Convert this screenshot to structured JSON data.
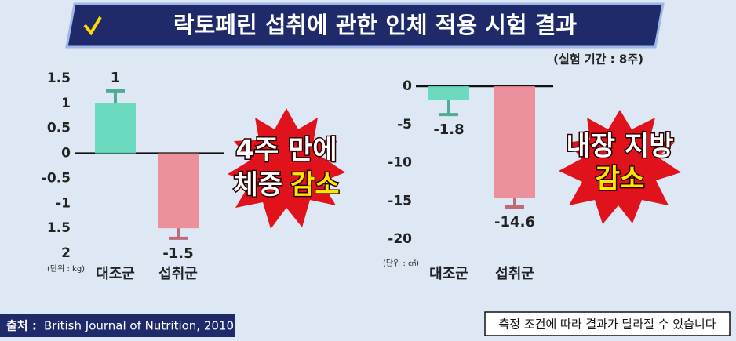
{
  "header": {
    "title": "락토페린 섭취에 관한 인체 적용 시험 결과",
    "period": "(실험 기간 : 8주)"
  },
  "chart_data": [
    {
      "type": "bar",
      "unit": "(단위 : kg)",
      "categories": [
        "대조군",
        "섭취군"
      ],
      "values": [
        1,
        -1.5
      ],
      "errors": [
        0.25,
        0.2
      ],
      "colors": [
        "#5fd8b9",
        "#ec8795"
      ],
      "ylim": [
        -2,
        1.5
      ],
      "yticks": [
        1.5,
        1,
        0.5,
        0,
        -0.5,
        -1,
        {
          "value": -1.5,
          "label": "1.5"
        },
        {
          "value": -2,
          "label": "2"
        }
      ],
      "grid": false,
      "annotation": {
        "line1": "4주 만에",
        "line2": "체중",
        "highlight": "감소"
      }
    },
    {
      "type": "bar",
      "unit": "(단위 : ㎠)",
      "categories": [
        "대조군",
        "섭취군"
      ],
      "values": [
        -1.8,
        -14.6
      ],
      "errors": [
        1.9,
        1.2
      ],
      "colors": [
        "#5fd8b9",
        "#ec8795"
      ],
      "ylim": [
        -20,
        0
      ],
      "yticks": [
        0,
        -5,
        -10,
        -15,
        -20
      ],
      "grid": false,
      "annotation": {
        "line1": "내장 지방",
        "highlight": "감소"
      }
    }
  ],
  "footer": {
    "source_label": "출처 :",
    "source": "British Journal of Nutrition, 2010",
    "disclaimer": "측정 조건에 따라 결과가 달라질 수 있습니다"
  }
}
